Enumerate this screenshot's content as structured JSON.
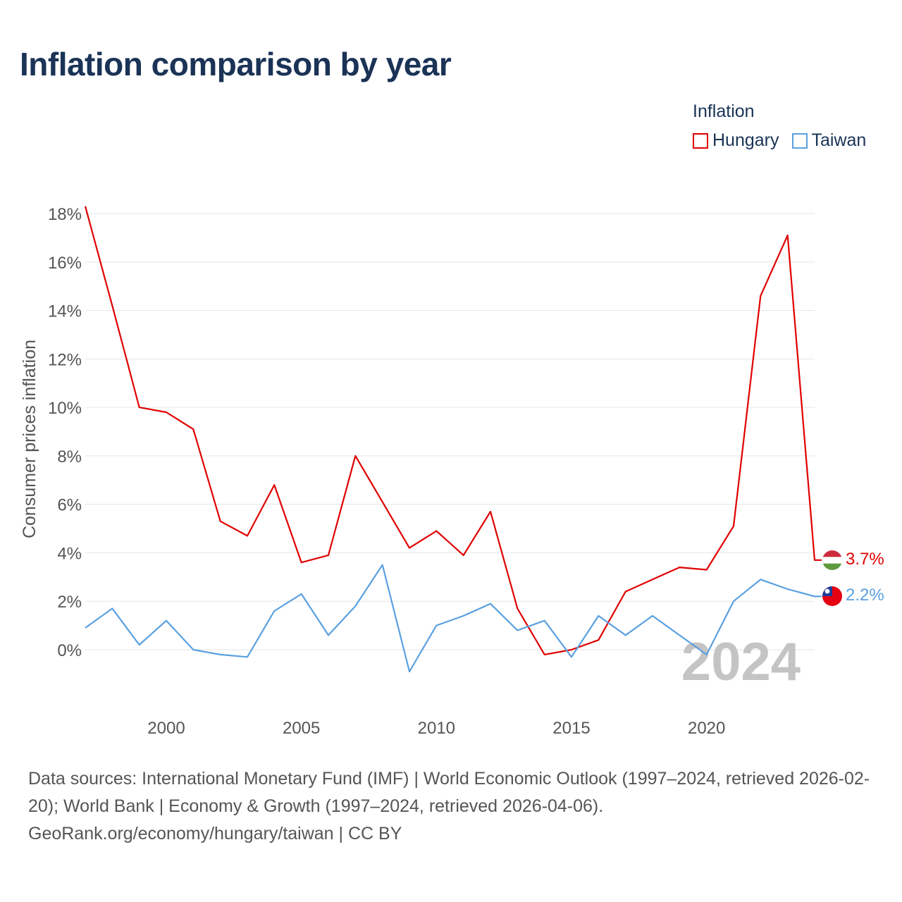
{
  "title": "Inflation comparison by year",
  "legend": {
    "title": "Inflation",
    "items": [
      {
        "name": "Hungary",
        "color": "#e00000"
      },
      {
        "name": "Taiwan",
        "color": "#5aa0e0"
      }
    ]
  },
  "watermark_year": "2024",
  "footer": {
    "sources": "Data sources: International Monetary Fund (IMF) | World Economic Outlook (1997–2024, retrieved 2026-02-20); World Bank | Economy & Growth (1997–2024, retrieved 2026-04-06).",
    "credit": "GeoRank.org/economy/hungary/taiwan | CC BY"
  },
  "chart_data": {
    "type": "line",
    "title": "Inflation comparison by year",
    "xlabel": "",
    "ylabel": "Consumer prices inflation",
    "x": [
      1997,
      1998,
      1999,
      2000,
      2001,
      2002,
      2003,
      2004,
      2005,
      2006,
      2007,
      2008,
      2009,
      2010,
      2011,
      2012,
      2013,
      2014,
      2015,
      2016,
      2017,
      2018,
      2019,
      2020,
      2021,
      2022,
      2023,
      2024
    ],
    "xticks": [
      2000,
      2005,
      2010,
      2015,
      2020
    ],
    "xlim": [
      1997,
      2024
    ],
    "ylim": [
      -2,
      18
    ],
    "yticks": [
      0,
      2,
      4,
      6,
      8,
      10,
      12,
      14,
      16,
      18
    ],
    "ytick_labels": [
      "0%",
      "2%",
      "4%",
      "6%",
      "8%",
      "10%",
      "12%",
      "14%",
      "16%",
      "18%"
    ],
    "grid": true,
    "series": [
      {
        "name": "Hungary",
        "color": "#e00000",
        "end_label": "3.7%",
        "values": [
          18.3,
          14.2,
          10.0,
          9.8,
          9.1,
          5.3,
          4.7,
          6.8,
          3.6,
          3.9,
          8.0,
          6.1,
          4.2,
          4.9,
          3.9,
          5.7,
          1.7,
          -0.2,
          0.0,
          0.4,
          2.4,
          2.9,
          3.4,
          3.3,
          5.1,
          14.6,
          17.1,
          3.7
        ]
      },
      {
        "name": "Taiwan",
        "color": "#5aa0e0",
        "end_label": "2.2%",
        "values": [
          0.9,
          1.7,
          0.2,
          1.2,
          0.0,
          -0.2,
          -0.3,
          1.6,
          2.3,
          0.6,
          1.8,
          3.5,
          -0.9,
          1.0,
          1.4,
          1.9,
          0.8,
          1.2,
          -0.3,
          1.4,
          0.6,
          1.4,
          0.6,
          -0.2,
          2.0,
          2.9,
          2.5,
          2.2
        ]
      }
    ]
  }
}
